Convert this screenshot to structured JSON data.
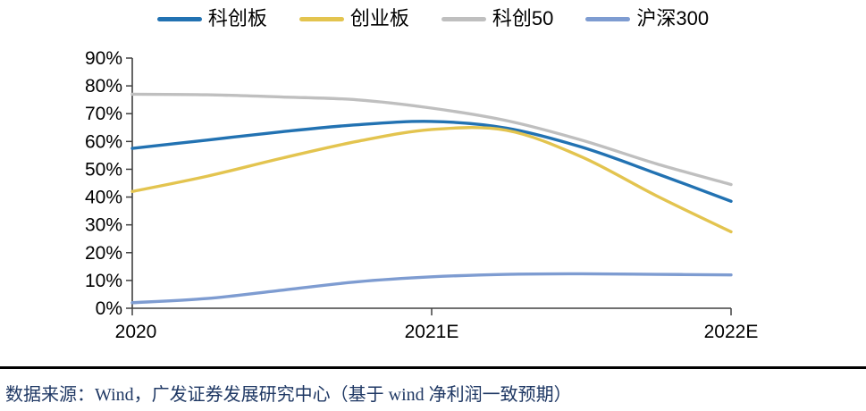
{
  "chart_data": {
    "type": "line",
    "title": "",
    "xlabel": "",
    "ylabel": "",
    "categories": [
      "2020",
      "2021E",
      "2022E"
    ],
    "yticks": [
      "0%",
      "10%",
      "20%",
      "30%",
      "40%",
      "50%",
      "60%",
      "70%",
      "80%",
      "90%"
    ],
    "ylim": [
      0,
      90
    ],
    "grid": false,
    "legend_position": "top",
    "axis_color": "#404040",
    "tick_label_color": "#000000",
    "series": [
      {
        "name": "科创板",
        "color": "#2272B2",
        "values": [
          57.5,
          67,
          38.5
        ],
        "samples": [
          57.5,
          60.5,
          63.5,
          66.0,
          67.2,
          64.8,
          58.0,
          48.5,
          38.5
        ]
      },
      {
        "name": "创业板",
        "color": "#E3C44F",
        "values": [
          42,
          64.5,
          27.5
        ],
        "samples": [
          42.0,
          47.5,
          54.0,
          60.0,
          64.3,
          64.0,
          54.5,
          40.5,
          27.5
        ]
      },
      {
        "name": "科创50",
        "color": "#BFBFBF",
        "values": [
          77,
          72,
          44.5
        ],
        "samples": [
          77.0,
          76.8,
          76.0,
          75.0,
          72.0,
          67.5,
          60.5,
          52.0,
          44.5
        ]
      },
      {
        "name": "沪深300",
        "color": "#7E9CD1",
        "values": [
          2,
          11.5,
          12
        ],
        "samples": [
          2.0,
          3.5,
          6.5,
          9.5,
          11.3,
          12.2,
          12.4,
          12.2,
          12.0
        ]
      }
    ]
  },
  "footer": {
    "source_text": "数据来源：Wind，广发证券发展研究中心（基于 wind 净利润一致预期）"
  }
}
